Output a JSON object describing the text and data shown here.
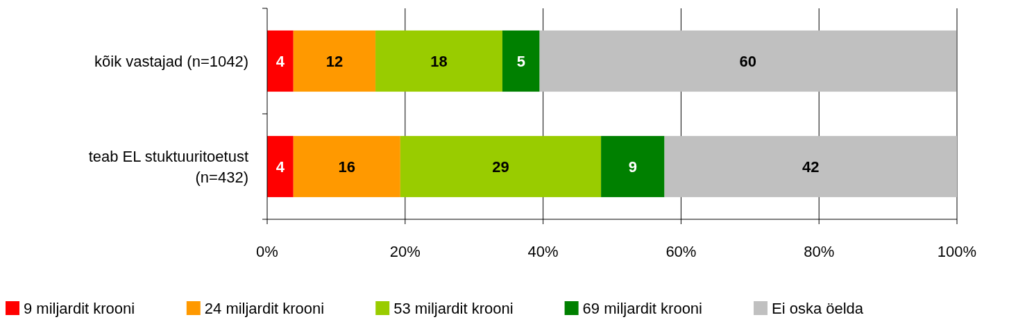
{
  "chart_data": {
    "type": "bar",
    "orientation": "horizontal",
    "stacked": true,
    "categories": [
      "kõik vastajad (n=1042)",
      "teab EL stuktuuritoetust (n=432)"
    ],
    "series": [
      {
        "name": "9 miljardit krooni",
        "color": "#ff0000",
        "values": [
          3.8,
          3.8
        ],
        "value_labels": [
          "4",
          "4"
        ]
      },
      {
        "name": "24 miljardit krooni",
        "color": "#ff9900",
        "values": [
          11.9,
          15.5
        ],
        "value_labels": [
          "12",
          "16"
        ]
      },
      {
        "name": "53 miljardit krooni",
        "color": "#99cc00",
        "values": [
          18.4,
          29.1
        ],
        "value_labels": [
          "18",
          "29"
        ]
      },
      {
        "name": "69 miljardit krooni",
        "color": "#008000",
        "values": [
          5.4,
          9.2
        ],
        "value_labels": [
          "5",
          "9"
        ]
      },
      {
        "name": "Ei oska öelda",
        "color": "#c0c0c0",
        "values": [
          60.4,
          42.4
        ],
        "value_labels": [
          "60",
          "42"
        ]
      }
    ],
    "xlim": [
      0,
      100
    ],
    "xticks": [
      {
        "value": 0,
        "label": "0%"
      },
      {
        "value": 20,
        "label": "20%"
      },
      {
        "value": 40,
        "label": "40%"
      },
      {
        "value": 60,
        "label": "60%"
      },
      {
        "value": 80,
        "label": "80%"
      },
      {
        "value": 100,
        "label": "100%"
      }
    ],
    "grid": "x",
    "legend": "bottom"
  }
}
